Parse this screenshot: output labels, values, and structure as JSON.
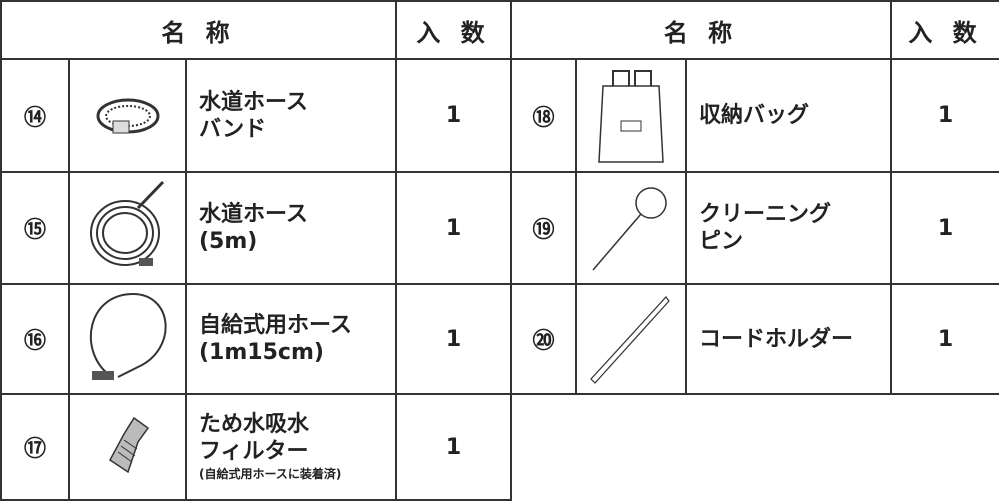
{
  "header": {
    "left": {
      "name": "名 称",
      "count": "入 数"
    },
    "right": {
      "name": "名 称",
      "count": "入 数"
    }
  },
  "items": [
    {
      "no": "⑭",
      "name": [
        "水道ホース",
        "バンド"
      ],
      "count": "1"
    },
    {
      "no": "⑮",
      "name": [
        "水道ホース",
        "(5m)"
      ],
      "count": "1"
    },
    {
      "no": "⑯",
      "name": [
        "自給式用ホース",
        "(1m15cm)"
      ],
      "count": "1"
    },
    {
      "no": "⑰",
      "name": [
        "ため水吸水",
        "フィルター"
      ],
      "note": "(自給式用ホースに装着済)",
      "count": "1"
    },
    {
      "no": "⑱",
      "name": [
        "収納バッグ"
      ],
      "count": "1"
    },
    {
      "no": "⑲",
      "name": [
        "クリーニング",
        "ピン"
      ],
      "count": "1"
    },
    {
      "no": "⑳",
      "name": [
        "コードホルダー"
      ],
      "count": "1"
    }
  ]
}
